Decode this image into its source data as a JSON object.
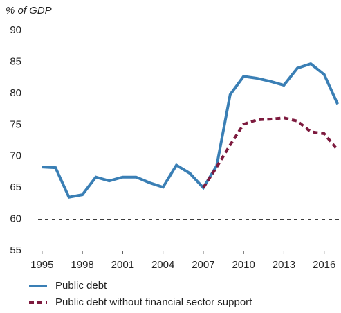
{
  "chart_data": {
    "type": "line",
    "ylabel": "% of GDP",
    "x": [
      1995,
      1996,
      1997,
      1998,
      1999,
      2000,
      2001,
      2002,
      2003,
      2004,
      2005,
      2006,
      2007,
      2008,
      2009,
      2010,
      2011,
      2012,
      2013,
      2014,
      2015,
      2016,
      2017
    ],
    "series": [
      {
        "name": "Public debt",
        "color": "#3a7fb5",
        "dash": false,
        "values": [
          68.3,
          68.2,
          63.5,
          63.9,
          66.7,
          66.1,
          66.7,
          66.7,
          65.8,
          65.1,
          68.6,
          67.3,
          65.0,
          68.5,
          79.8,
          82.7,
          82.4,
          81.9,
          81.3,
          84.0,
          84.7,
          83.0,
          78.3
        ]
      },
      {
        "name": "Public debt without financial sector support",
        "color": "#7d1a3e",
        "dash": true,
        "values": [
          null,
          null,
          null,
          null,
          null,
          null,
          null,
          null,
          null,
          null,
          null,
          null,
          65.0,
          68.3,
          71.8,
          75.1,
          75.8,
          75.9,
          76.1,
          75.6,
          73.9,
          73.6,
          71.0
        ]
      }
    ],
    "reference_line": 60,
    "xlim": [
      1994.7,
      2017.2
    ],
    "xticks": [
      1995,
      1998,
      2001,
      2004,
      2007,
      2010,
      2013,
      2016
    ],
    "ylim": [
      55,
      90
    ],
    "yticks": [
      55,
      60,
      65,
      70,
      75,
      80,
      85,
      90
    ]
  }
}
